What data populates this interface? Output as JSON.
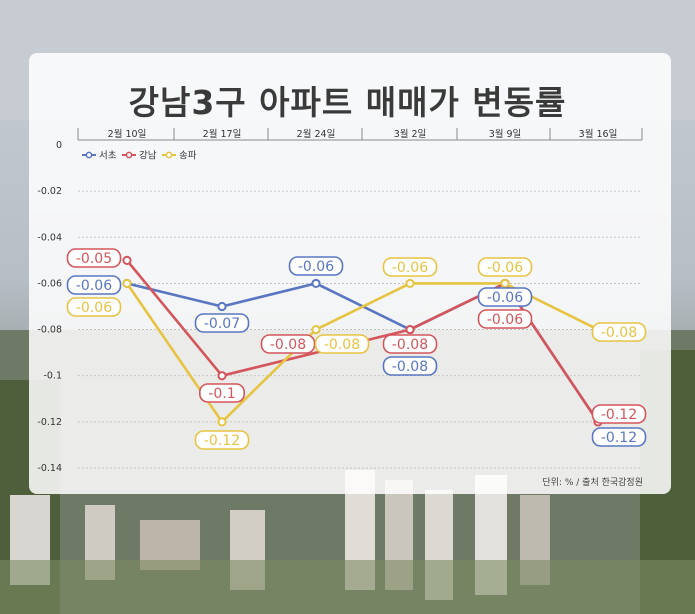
{
  "chart_data": {
    "type": "line",
    "title": "강남3구 아파트 매매가 변동률",
    "source": "단위: % / 출처 한국감정원",
    "categories": [
      "2월 10일",
      "2월 17일",
      "2월 24일",
      "3월 2일",
      "3월 9일",
      "3월 16일"
    ],
    "ylim": [
      -0.14,
      0
    ],
    "yticks": [
      "0",
      "-0.02",
      "-0.04",
      "-0.06",
      "-0.08",
      "-0.1",
      "-0.12",
      "-0.14"
    ],
    "legend_position": "top-left",
    "series": [
      {
        "name": "서초",
        "color": "#5a76c2",
        "values": [
          -0.06,
          -0.07,
          -0.06,
          -0.08,
          -0.06,
          -0.12
        ],
        "labels": [
          "-0.06",
          "-0.07",
          "-0.06",
          "-0.08",
          "-0.06",
          "-0.12"
        ]
      },
      {
        "name": "강남",
        "color": "#d4555c",
        "values": [
          -0.05,
          -0.1,
          null,
          -0.08,
          -0.06,
          -0.12
        ],
        "labels": [
          "-0.05",
          "-0.1",
          "-0.08",
          "-0.08",
          "-0.06",
          "-0.12"
        ]
      },
      {
        "name": "송파",
        "color": "#e6c441",
        "values": [
          -0.06,
          -0.12,
          -0.08,
          -0.06,
          -0.06,
          -0.08
        ],
        "labels": [
          "-0.06",
          "-0.12",
          "-0.08",
          "-0.06",
          "-0.06",
          "-0.08"
        ]
      }
    ]
  }
}
